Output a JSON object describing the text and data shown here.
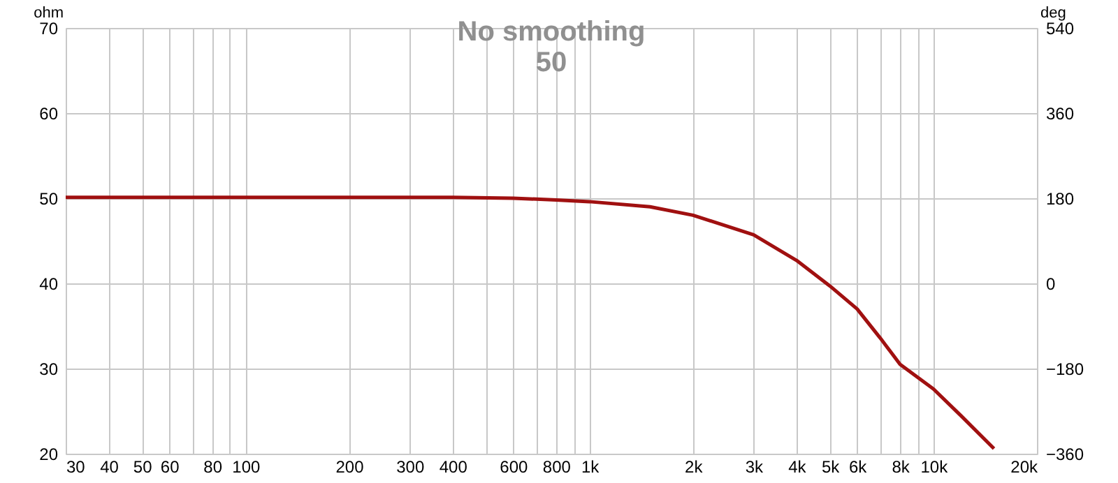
{
  "chart_data": {
    "type": "line",
    "title": "No smoothing",
    "subtitle": "50",
    "ylabel": "ohm",
    "y2label": "deg",
    "log": "x",
    "grid": true,
    "marker": "none",
    "line_style": "solid",
    "xlim": [
      30,
      20000
    ],
    "xticks": [
      30,
      40,
      50,
      60,
      {
        "value": 70,
        "label": null
      },
      80,
      {
        "value": 90,
        "label": null
      },
      100,
      200,
      300,
      400,
      {
        "value": 500,
        "label": null
      },
      600,
      {
        "value": 700,
        "label": null
      },
      800,
      {
        "value": 900,
        "label": null
      },
      {
        "value": 1000,
        "label": "1k"
      },
      {
        "value": 2000,
        "label": "2k"
      },
      {
        "value": 3000,
        "label": "3k"
      },
      {
        "value": 4000,
        "label": "4k"
      },
      {
        "value": 5000,
        "label": "5k"
      },
      {
        "value": 6000,
        "label": "6k"
      },
      {
        "value": 7000,
        "label": null
      },
      {
        "value": 8000,
        "label": "8k"
      },
      {
        "value": 9000,
        "label": null
      },
      {
        "value": 10000,
        "label": "10k"
      },
      {
        "value": 20000,
        "label": "20k"
      }
    ],
    "ylim": [
      20,
      70
    ],
    "yticks": [
      20,
      30,
      40,
      50,
      60,
      70
    ],
    "y2lim": [
      -360,
      540
    ],
    "y2ticks": [
      -360,
      -180,
      0,
      180,
      360,
      540
    ],
    "x": [
      30,
      50,
      100,
      200,
      300,
      400,
      600,
      800,
      1000,
      1500,
      2000,
      3000,
      4000,
      5000,
      6000,
      7000,
      8000,
      10000,
      12000,
      15000
    ],
    "series": [
      {
        "color": "#a01010",
        "values": [
          50.1,
          50.1,
          50.1,
          50.1,
          50.1,
          50.1,
          50.0,
          49.8,
          49.6,
          49.0,
          48.0,
          45.7,
          42.7,
          39.7,
          37.0,
          33.6,
          30.5,
          27.6,
          24.5,
          20.6
        ]
      }
    ]
  }
}
